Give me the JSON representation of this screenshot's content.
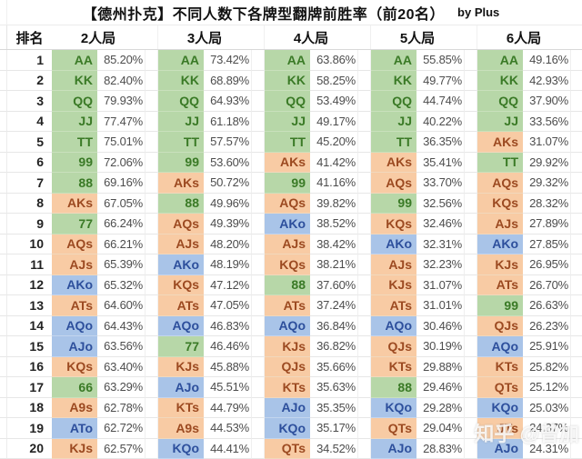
{
  "title": {
    "main": "【德州扑克】不同人数下各牌型翻牌前胜率（前20名）",
    "byline": "by Plus"
  },
  "header": {
    "rank_label": "排名",
    "group_labels": [
      "2人局",
      "3人局",
      "4人局",
      "5人局",
      "6人局"
    ]
  },
  "legend_colors": {
    "pair_bg": "#b7d7a8",
    "pair_text": "#3a7a26",
    "suited_bg": "#f8cba4",
    "suited_text": "#9c4a21",
    "offsuit_bg": "#a9c4e8",
    "offsuit_text": "#2d4f9c"
  },
  "watermark": "知乎 @曾加",
  "rows": [
    {
      "rank": "1",
      "cells": [
        [
          "AA",
          "85.20%"
        ],
        [
          "AA",
          "73.42%"
        ],
        [
          "AA",
          "63.86%"
        ],
        [
          "AA",
          "55.85%"
        ],
        [
          "AA",
          "49.16%"
        ]
      ]
    },
    {
      "rank": "2",
      "cells": [
        [
          "KK",
          "82.40%"
        ],
        [
          "KK",
          "68.89%"
        ],
        [
          "KK",
          "58.25%"
        ],
        [
          "KK",
          "49.77%"
        ],
        [
          "KK",
          "42.93%"
        ]
      ]
    },
    {
      "rank": "3",
      "cells": [
        [
          "QQ",
          "79.93%"
        ],
        [
          "QQ",
          "64.93%"
        ],
        [
          "QQ",
          "53.49%"
        ],
        [
          "QQ",
          "44.74%"
        ],
        [
          "QQ",
          "37.90%"
        ]
      ]
    },
    {
      "rank": "4",
      "cells": [
        [
          "JJ",
          "77.47%"
        ],
        [
          "JJ",
          "61.18%"
        ],
        [
          "JJ",
          "49.17%"
        ],
        [
          "JJ",
          "40.22%"
        ],
        [
          "JJ",
          "33.56%"
        ]
      ]
    },
    {
      "rank": "5",
      "cells": [
        [
          "TT",
          "75.01%"
        ],
        [
          "TT",
          "57.57%"
        ],
        [
          "TT",
          "45.20%"
        ],
        [
          "TT",
          "36.35%"
        ],
        [
          "AKs",
          "31.07%"
        ]
      ]
    },
    {
      "rank": "6",
      "cells": [
        [
          "99",
          "72.06%"
        ],
        [
          "99",
          "53.60%"
        ],
        [
          "AKs",
          "41.42%"
        ],
        [
          "AKs",
          "35.41%"
        ],
        [
          "TT",
          "29.92%"
        ]
      ]
    },
    {
      "rank": "7",
      "cells": [
        [
          "88",
          "69.16%"
        ],
        [
          "AKs",
          "50.72%"
        ],
        [
          "99",
          "41.16%"
        ],
        [
          "AQs",
          "33.70%"
        ],
        [
          "AQs",
          "29.32%"
        ]
      ]
    },
    {
      "rank": "8",
      "cells": [
        [
          "AKs",
          "67.05%"
        ],
        [
          "88",
          "49.96%"
        ],
        [
          "AQs",
          "39.82%"
        ],
        [
          "99",
          "32.56%"
        ],
        [
          "KQs",
          "28.32%"
        ]
      ]
    },
    {
      "rank": "9",
      "cells": [
        [
          "77",
          "66.24%"
        ],
        [
          "AQs",
          "49.39%"
        ],
        [
          "AKo",
          "38.52%"
        ],
        [
          "KQs",
          "32.46%"
        ],
        [
          "AJs",
          "27.89%"
        ]
      ]
    },
    {
      "rank": "10",
      "cells": [
        [
          "AQs",
          "66.21%"
        ],
        [
          "AJs",
          "48.20%"
        ],
        [
          "AJs",
          "38.42%"
        ],
        [
          "AKo",
          "32.31%"
        ],
        [
          "AKo",
          "27.85%"
        ]
      ]
    },
    {
      "rank": "11",
      "cells": [
        [
          "AJs",
          "65.39%"
        ],
        [
          "AKo",
          "48.19%"
        ],
        [
          "KQs",
          "38.21%"
        ],
        [
          "AJs",
          "32.23%"
        ],
        [
          "KJs",
          "26.95%"
        ]
      ]
    },
    {
      "rank": "12",
      "cells": [
        [
          "AKo",
          "65.32%"
        ],
        [
          "KQs",
          "47.12%"
        ],
        [
          "88",
          "37.60%"
        ],
        [
          "KJs",
          "31.07%"
        ],
        [
          "ATs",
          "26.70%"
        ]
      ]
    },
    {
      "rank": "13",
      "cells": [
        [
          "ATs",
          "64.60%"
        ],
        [
          "ATs",
          "47.05%"
        ],
        [
          "ATs",
          "37.24%"
        ],
        [
          "ATs",
          "31.01%"
        ],
        [
          "99",
          "26.63%"
        ]
      ]
    },
    {
      "rank": "14",
      "cells": [
        [
          "AQo",
          "64.43%"
        ],
        [
          "AQo",
          "46.83%"
        ],
        [
          "AQo",
          "36.84%"
        ],
        [
          "AQo",
          "30.46%"
        ],
        [
          "QJs",
          "26.23%"
        ]
      ]
    },
    {
      "rank": "15",
      "cells": [
        [
          "AJo",
          "63.56%"
        ],
        [
          "77",
          "46.46%"
        ],
        [
          "KJs",
          "36.82%"
        ],
        [
          "QJs",
          "30.19%"
        ],
        [
          "AQo",
          "25.91%"
        ]
      ]
    },
    {
      "rank": "16",
      "cells": [
        [
          "KQs",
          "63.40%"
        ],
        [
          "KJs",
          "45.88%"
        ],
        [
          "QJs",
          "35.66%"
        ],
        [
          "KTs",
          "29.88%"
        ],
        [
          "KTs",
          "25.82%"
        ]
      ]
    },
    {
      "rank": "17",
      "cells": [
        [
          "66",
          "63.29%"
        ],
        [
          "AJo",
          "45.51%"
        ],
        [
          "KTs",
          "35.63%"
        ],
        [
          "88",
          "29.46%"
        ],
        [
          "QTs",
          "25.12%"
        ]
      ]
    },
    {
      "rank": "18",
      "cells": [
        [
          "A9s",
          "62.78%"
        ],
        [
          "KTs",
          "44.79%"
        ],
        [
          "AJo",
          "35.35%"
        ],
        [
          "KQo",
          "29.28%"
        ],
        [
          "KQo",
          "25.03%"
        ]
      ]
    },
    {
      "rank": "19",
      "cells": [
        [
          "ATo",
          "62.72%"
        ],
        [
          "A9s",
          "44.53%"
        ],
        [
          "KQo",
          "35.17%"
        ],
        [
          "QTs",
          "29.04%"
        ],
        [
          "JTs",
          "24.37%"
        ]
      ]
    },
    {
      "rank": "20",
      "cells": [
        [
          "KJs",
          "62.57%"
        ],
        [
          "KQo",
          "44.41%"
        ],
        [
          "QTs",
          "34.52%"
        ],
        [
          "AJo",
          "28.83%"
        ],
        [
          "AJo",
          "24.31%"
        ]
      ]
    }
  ]
}
